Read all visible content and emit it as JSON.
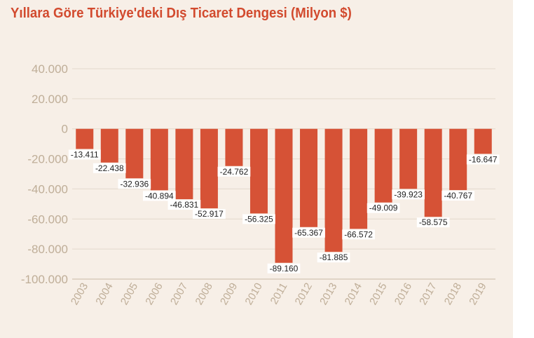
{
  "colors": {
    "background": "#f7efe7",
    "bar": "#d65236",
    "title": "#d24a2e",
    "grid": "#e3d9cc",
    "tick_text": "#bfae98"
  },
  "chart_data": {
    "type": "bar",
    "title": "Yıllara Göre Türkiye'deki Dış Ticaret Dengesi (Milyon $)",
    "xlabel": "",
    "ylabel": "",
    "ylim": [
      -100000,
      40000
    ],
    "grid": true,
    "categories": [
      "2003",
      "2004",
      "2005",
      "2006",
      "2007",
      "2008",
      "2009",
      "2010",
      "2011",
      "2012",
      "2013",
      "2014",
      "2015",
      "2016",
      "2017",
      "2018",
      "2019"
    ],
    "values": [
      -13411,
      -22438,
      -32936,
      -40894,
      -46831,
      -52917,
      -24762,
      -56325,
      -89160,
      -65367,
      -81885,
      -66572,
      -49009,
      -39923,
      -58575,
      -40767,
      -16647
    ],
    "data_labels": [
      "-13.411",
      "-22.438",
      "-32.936",
      "-40.894",
      "-46.831",
      "-52.917",
      "-24.762",
      "-56.325",
      "-89.160",
      "-65.367",
      "-81.885",
      "-66.572",
      "-49.009",
      "-39.923",
      "-58.575",
      "-40.767",
      "-16.647"
    ],
    "y_ticks": [
      40000,
      20000,
      0,
      -20000,
      -40000,
      -60000,
      -80000,
      -100000
    ],
    "y_tick_labels": [
      "40.000",
      "20.000",
      "0",
      "-20.000",
      "-40.000",
      "-60.000",
      "-80.000",
      "-100.000"
    ]
  }
}
